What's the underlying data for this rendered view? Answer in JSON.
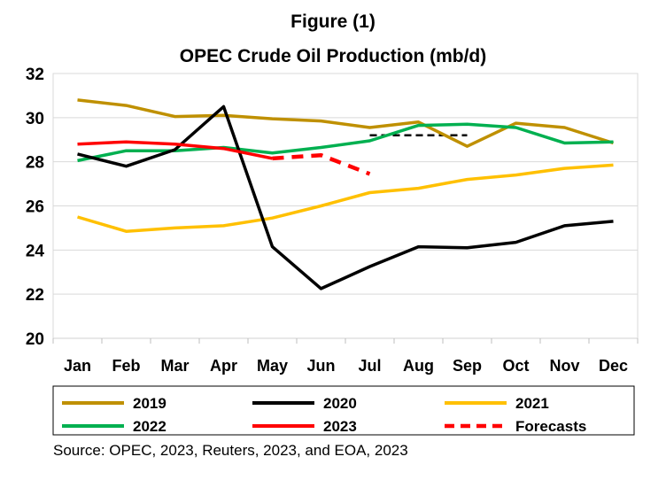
{
  "figure_label": "Figure (1)",
  "source": "Source: OPEC, 2023, Reuters, 2023, and EOA, 2023",
  "chart_data": {
    "type": "line",
    "title": "OPEC Crude Oil Production (mb/d)",
    "xlabel": "",
    "ylabel": "",
    "categories": [
      "Jan",
      "Feb",
      "Mar",
      "Apr",
      "May",
      "Jun",
      "Jul",
      "Aug",
      "Sep",
      "Oct",
      "Nov",
      "Dec"
    ],
    "ylim": [
      20,
      32
    ],
    "yticks": [
      20,
      22,
      24,
      26,
      28,
      30,
      32
    ],
    "grid": true,
    "legend_position": "bottom",
    "series": [
      {
        "name": "2019",
        "color": "#bf9000",
        "style": "solid",
        "values": [
          30.8,
          30.55,
          30.05,
          30.1,
          29.95,
          29.85,
          29.55,
          29.8,
          28.7,
          29.75,
          29.55,
          28.85
        ]
      },
      {
        "name": "2020",
        "color": "#000000",
        "style": "solid",
        "values": [
          28.35,
          27.8,
          28.55,
          30.5,
          24.15,
          22.25,
          23.25,
          24.15,
          24.1,
          24.35,
          25.1,
          25.3
        ]
      },
      {
        "name": "2021",
        "color": "#ffc000",
        "style": "solid",
        "values": [
          25.5,
          24.85,
          25.0,
          25.1,
          25.45,
          26.0,
          26.6,
          26.8,
          27.2,
          27.4,
          27.7,
          27.85
        ]
      },
      {
        "name": "2022",
        "color": "#00b050",
        "style": "solid",
        "values": [
          28.05,
          28.5,
          28.5,
          28.65,
          28.4,
          28.65,
          28.95,
          29.65,
          29.7,
          29.55,
          28.85,
          28.9
        ]
      },
      {
        "name": "2023",
        "color": "#ff0000",
        "style": "solid",
        "values": [
          28.8,
          28.9,
          28.8,
          28.6,
          28.15,
          null,
          null,
          null,
          null,
          null,
          null,
          null
        ]
      },
      {
        "name": "Forecasts",
        "color": "#ff0000",
        "style": "dashed",
        "values": [
          null,
          null,
          null,
          null,
          28.15,
          28.3,
          27.45,
          null,
          null,
          null,
          null,
          null
        ]
      }
    ],
    "reference_segments": [
      {
        "color": "#000000",
        "style": "dashed",
        "x_start": "Jul",
        "x_end": "Sep",
        "y": 29.2
      }
    ]
  }
}
